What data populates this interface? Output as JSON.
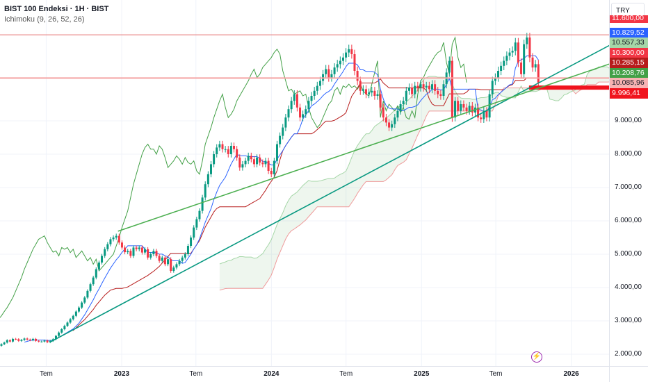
{
  "header": {
    "symbol_title": "BIST 100 Endeksi · 1H · BIST",
    "indicator": "Ichimoku (9, 26, 52, 26)",
    "currency": "TRY"
  },
  "chart_data": {
    "type": "candlestick",
    "title": "BIST 100 Endeksi · 1H · BIST",
    "indicator": {
      "name": "Ichimoku",
      "params": [
        9,
        26,
        52,
        26
      ]
    },
    "y_scale": "linear",
    "ylim": [
      1700,
      12500
    ],
    "y_ticks": [
      "9.000,00",
      "8.000,00",
      "7.000,00",
      "6.000,00",
      "5.000,00",
      "4.000,00",
      "3.000,00",
      "2.000,00"
    ],
    "y_tick_values": [
      9000,
      8000,
      7000,
      6000,
      5000,
      4000,
      3000,
      2000
    ],
    "x_ticks": [
      {
        "label": "Tem",
        "date": "2022-07-01",
        "year": false
      },
      {
        "label": "2023",
        "date": "2023-01-01",
        "year": true
      },
      {
        "label": "Tem",
        "date": "2023-07-01",
        "year": false
      },
      {
        "label": "2024",
        "date": "2024-01-01",
        "year": true
      },
      {
        "label": "Tem",
        "date": "2024-07-01",
        "year": false
      },
      {
        "label": "2025",
        "date": "2025-01-01",
        "year": true
      },
      {
        "label": "Tem",
        "date": "2025-07-01",
        "year": false
      },
      {
        "label": "2026",
        "date": "2026-01-01",
        "year": true
      }
    ],
    "grid": true,
    "closes": [
      2300,
      2350,
      2420,
      2380,
      2460,
      2450,
      2400,
      2430,
      2470,
      2440,
      2420,
      2460,
      2400,
      2380,
      2380,
      2410,
      2360,
      2400,
      2450,
      2550,
      2650,
      2750,
      2850,
      2950,
      3050,
      3150,
      3280,
      3400,
      3550,
      3700,
      3900,
      4100,
      4300,
      4550,
      4750,
      4950,
      5150,
      5300,
      5450,
      5500,
      5550,
      5350,
      5200,
      5060,
      5100,
      4950,
      5200,
      5150,
      5200,
      5050,
      5150,
      4900,
      5000,
      5100,
      4950,
      4800,
      4900,
      4700,
      4850,
      4500,
      4600,
      4700,
      4800,
      4900,
      5000,
      5250,
      5500,
      5800,
      6050,
      6300,
      6700,
      7100,
      7400,
      7700,
      8000,
      8200,
      8300,
      8150,
      8150,
      8000,
      8250,
      8150,
      7900,
      7600,
      7700,
      7800,
      7950,
      7850,
      7700,
      7900,
      7750,
      7700,
      7800,
      7500,
      7400,
      7800,
      8300,
      8550,
      8800,
      9100,
      9350,
      9600,
      9800,
      9400,
      9100,
      9200,
      9350,
      9600,
      9750,
      9900,
      10050,
      10200,
      10400,
      10550,
      10300,
      10400,
      10600,
      10700,
      10800,
      10900,
      11050,
      11150,
      11000,
      10500,
      10200,
      9900,
      9950,
      9800,
      9850,
      9900,
      9750,
      9800,
      9400,
      9100,
      8950,
      8800,
      8900,
      9100,
      9300,
      9500,
      9600,
      9900,
      10000,
      9800,
      10050,
      10000,
      10100,
      10000,
      10050,
      9950,
      10100,
      9900,
      9800,
      9750,
      10100,
      10450,
      10800,
      9100,
      9600,
      9300,
      9500,
      9400,
      9300,
      9450,
      9250,
      9400,
      9100,
      9050,
      9300,
      9100,
      9800,
      10200,
      10300,
      10500,
      10650,
      10800,
      10950,
      11050,
      11100,
      11350,
      10750,
      10400,
      11300,
      11500,
      10900,
      10600,
      10700,
      10150
    ],
    "trend_lines": [
      {
        "from": {
          "date": "2022-07-12",
          "price": 2375
        },
        "to": {
          "date": "2026-04-05",
          "price": 11270
        },
        "color": "#089981"
      },
      {
        "from": {
          "date": "2022-12-23",
          "price": 5690
        },
        "to": {
          "date": "2026-04-05",
          "price": 10710
        },
        "color": "#4caf50"
      }
    ],
    "horizontal_lines": [
      {
        "price": 11580,
        "color": "#e57373"
      },
      {
        "price": 10285.15,
        "color": "#f4a5a5"
      },
      {
        "price": 9996.41,
        "color": "#f0141e",
        "from_date": "2025-09-20"
      }
    ],
    "price_labels": [
      {
        "text": "11.600,00",
        "bg": "#f23645",
        "fg": "#ffffff"
      },
      {
        "text": "10.829,52",
        "bg": "#2962ff",
        "fg": "#ffffff"
      },
      {
        "text": "10.557,33",
        "bg": "#a5d6a7",
        "fg": "#131722"
      },
      {
        "text": "10.300,00",
        "bg": "#f23645",
        "fg": "#ffffff"
      },
      {
        "text": "10.285,15",
        "bg": "#b71c1c",
        "fg": "#ffffff"
      },
      {
        "text": "10.208,76",
        "bg": "#43a047",
        "fg": "#ffffff"
      },
      {
        "text": "10.085,96",
        "bg": "#f7b3b3",
        "fg": "#131722"
      },
      {
        "text": "9.996,41",
        "bg": "#f0141e",
        "fg": "#ffffff"
      }
    ],
    "colors": {
      "up": "#089981",
      "down": "#f23645",
      "conversion": "#2962ff",
      "base": "#b71c1c",
      "lagging": "#43a047",
      "span_a": "#a5d6a7",
      "span_b": "#ef9a9a",
      "cloud": "rgba(67,160,71,0.09)"
    }
  },
  "footer": {
    "icon": "lightning-icon"
  }
}
